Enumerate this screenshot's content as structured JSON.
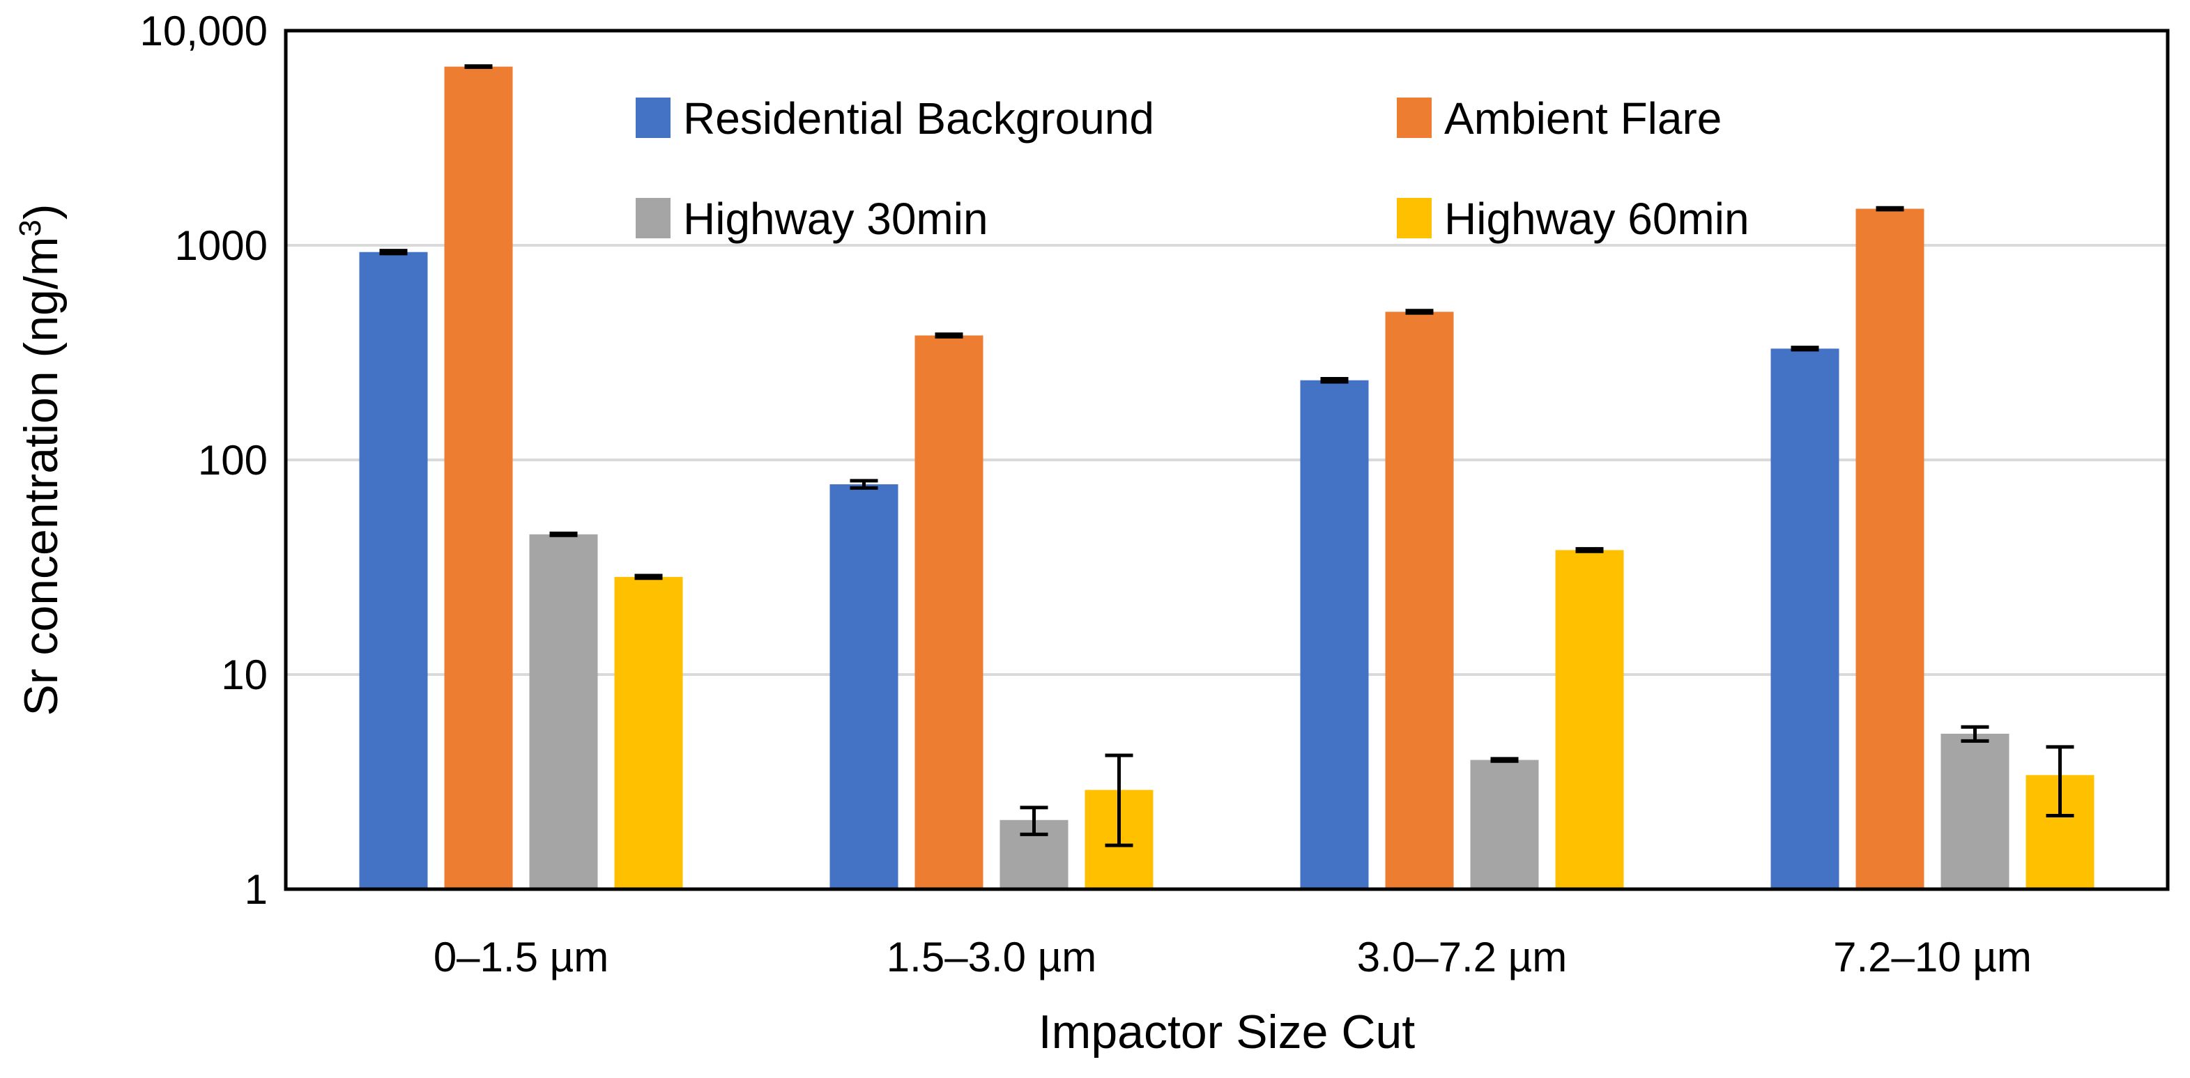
{
  "chart_data": {
    "type": "bar",
    "title": "",
    "xlabel": "Impactor Size Cut",
    "ylabel_main": "Sr concentration (ng/m",
    "ylabel_sup": "3",
    "ylabel_close": ")",
    "yscale": "log",
    "ylim": [
      1,
      10000
    ],
    "yticks": [
      {
        "value": 1,
        "label": "1"
      },
      {
        "value": 10,
        "label": "10"
      },
      {
        "value": 100,
        "label": "100"
      },
      {
        "value": 1000,
        "label": "1000"
      },
      {
        "value": 10000,
        "label": "10,000"
      }
    ],
    "grid": true,
    "legend_position": "top-center",
    "categories": [
      "0–1.5 µm",
      "1.5–3.0 µm",
      "3.0–7.2 µm",
      "7.2–10 µm"
    ],
    "series": [
      {
        "name": "Residential Background",
        "color": "#4472C4",
        "values": [
          930,
          77,
          235,
          330
        ],
        "errors": [
          15,
          3,
          4,
          4
        ]
      },
      {
        "name": "Ambient Flare",
        "color": "#ED7D31",
        "values": [
          6800,
          380,
          490,
          1480
        ],
        "errors": [
          40,
          5,
          6,
          15
        ]
      },
      {
        "name": "Highway 30min",
        "color": "#A5A5A5",
        "values": [
          45,
          2.1,
          4.0,
          5.3
        ],
        "errors": [
          0.5,
          0.3,
          0.05,
          0.4
        ]
      },
      {
        "name": "Highway 60min",
        "color": "#FFC000",
        "values": [
          28.5,
          2.9,
          38,
          3.4
        ],
        "errors": [
          0.4,
          1.3,
          0.5,
          1.2
        ]
      }
    ]
  }
}
